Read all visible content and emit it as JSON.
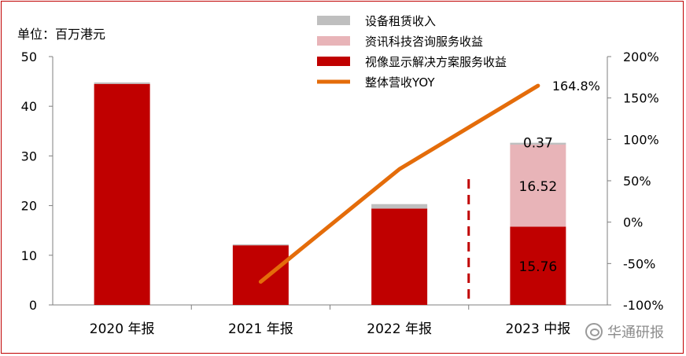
{
  "chart_data": {
    "type": "bar",
    "unit_label": "单位：百万港元",
    "categories": [
      "2020 年报",
      "2021 年报",
      "2022 年报",
      "2023 中报"
    ],
    "series": [
      {
        "name": "视像显示解决方案服务收益",
        "kind": "bar",
        "axis": "left",
        "color": "#c00000",
        "values": [
          44.5,
          12.0,
          19.4,
          15.76
        ]
      },
      {
        "name": "资讯科技咨询服务收益",
        "kind": "bar",
        "axis": "left",
        "color": "#e8b4b8",
        "values": [
          0,
          0,
          0,
          16.52
        ]
      },
      {
        "name": "设备租赁收入",
        "kind": "bar",
        "axis": "left",
        "color": "#bfbfbf",
        "values": [
          0.3,
          0.2,
          0.9,
          0.37
        ]
      },
      {
        "name": "整体营收YOY",
        "kind": "line",
        "axis": "right",
        "color": "#e46c0a",
        "x": [
          "2021 年报",
          "2022 年报",
          "2023 中报"
        ],
        "values": [
          -72,
          64,
          164.8
        ]
      }
    ],
    "data_labels": {
      "2023 中报": [
        "15.76",
        "16.52",
        "0.37"
      ]
    },
    "line_end_label": "164.8%",
    "y_left": {
      "ylim": [
        0,
        50
      ],
      "ticks": [
        "0",
        "10",
        "20",
        "30",
        "40",
        "50"
      ]
    },
    "y_right": {
      "ylim": [
        -100,
        200
      ],
      "ticks": [
        "-100%",
        "-50%",
        "0%",
        "50%",
        "100%",
        "150%",
        "200%"
      ]
    },
    "separator_before": "2023 中报",
    "grid": false,
    "legend_position": "top-center"
  },
  "watermark": "华通研报"
}
